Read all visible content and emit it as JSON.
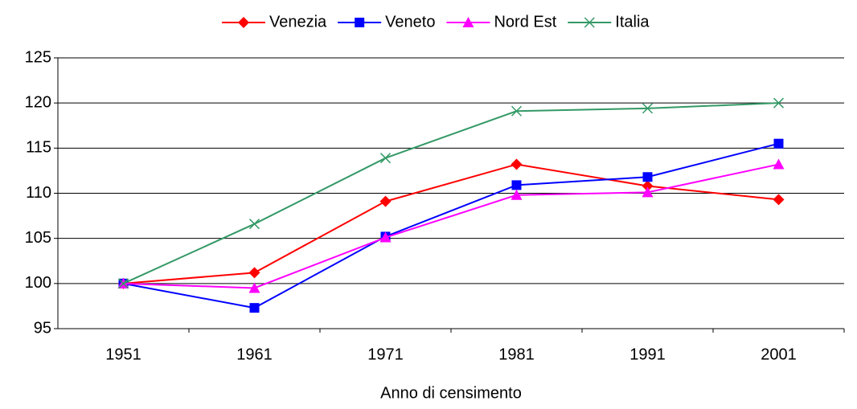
{
  "chart_data": {
    "type": "line",
    "x_label": "Anno di censimento",
    "categories": [
      "1951",
      "1961",
      "1971",
      "1981",
      "1991",
      "2001"
    ],
    "series": [
      {
        "name": "Venezia",
        "color": "#ff0000",
        "marker": "diamond",
        "values": [
          100,
          101.2,
          109.1,
          113.2,
          110.8,
          109.3
        ]
      },
      {
        "name": "Veneto",
        "color": "#0000ff",
        "marker": "square",
        "values": [
          100,
          97.3,
          105.2,
          110.9,
          111.8,
          115.5
        ]
      },
      {
        "name": "Nord Est",
        "color": "#ff00ff",
        "marker": "triangle",
        "values": [
          100,
          99.5,
          105.1,
          109.8,
          110.1,
          113.2
        ]
      },
      {
        "name": "Italia",
        "color": "#339966",
        "marker": "x",
        "values": [
          100,
          106.6,
          113.9,
          119.1,
          119.4,
          120.0
        ]
      }
    ],
    "ylim": [
      95,
      125
    ],
    "yticks": [
      95,
      100,
      105,
      110,
      115,
      120,
      125
    ],
    "grid": true,
    "legend": "top"
  }
}
